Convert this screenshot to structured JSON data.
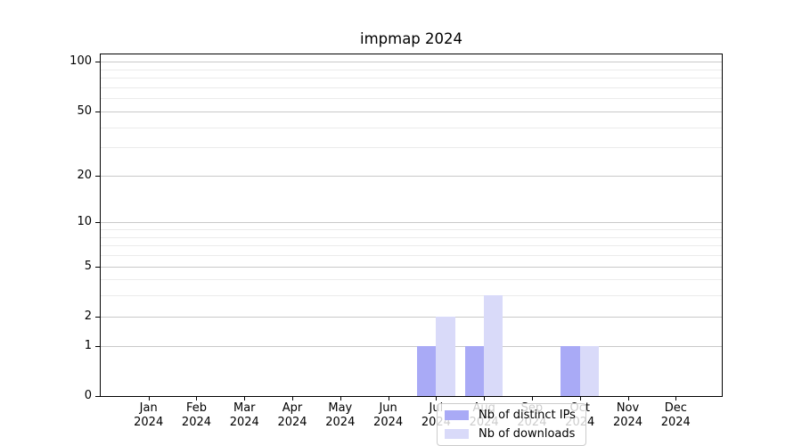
{
  "chart_data": {
    "type": "bar",
    "title": "impmap 2024",
    "categories": [
      "Jan 2024",
      "Feb 2024",
      "Mar 2024",
      "Apr 2024",
      "May 2024",
      "Jun 2024",
      "Jul 2024",
      "Aug 2024",
      "Sep 2024",
      "Oct 2024",
      "Nov 2024",
      "Dec 2024"
    ],
    "series": [
      {
        "name": "Nb of distinct IPs",
        "color": "#a9aaf6",
        "values": [
          0,
          0,
          0,
          0,
          0,
          0,
          1,
          1,
          0,
          1,
          0,
          0
        ]
      },
      {
        "name": "Nb of downloads",
        "color": "#d9daf9",
        "values": [
          0,
          0,
          0,
          0,
          0,
          0,
          2,
          3,
          0,
          1,
          0,
          0
        ]
      }
    ],
    "xlabel": "",
    "ylabel": "",
    "yscale": "log1p",
    "ylim": [
      0,
      111
    ],
    "yticks": [
      0,
      1,
      2,
      5,
      10,
      20,
      50,
      100
    ],
    "yticks_minor": [
      3,
      4,
      6,
      7,
      8,
      9,
      30,
      40,
      60,
      70,
      80,
      90
    ],
    "grid": "horizontal",
    "legend": {
      "location": "lower center"
    }
  },
  "style": {
    "grid_major_color": "#c9c9c9",
    "grid_minor_color": "#ebebeb",
    "axis_color": "#000000",
    "background_color": "#ffffff"
  }
}
